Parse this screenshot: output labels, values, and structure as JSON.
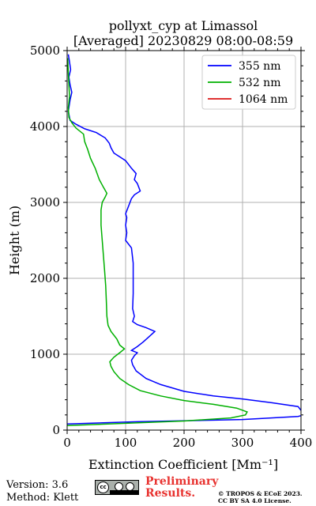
{
  "chart_data": {
    "type": "line",
    "title": "pollyxt_cyp at Limassol",
    "subtitle": "[Averaged] 20230829 08:00-08:59",
    "xlabel": "Extinction Coefficient [Mm⁻¹]",
    "ylabel": "Height (m)",
    "xlim": [
      0,
      400
    ],
    "ylim": [
      0,
      5000
    ],
    "x_ticks": [
      "0",
      "100",
      "200",
      "300",
      "400"
    ],
    "y_ticks": [
      "0",
      "1000",
      "2000",
      "3000",
      "4000",
      "5000"
    ],
    "x_tick_values": [
      0,
      100,
      200,
      300,
      400
    ],
    "y_tick_values": [
      0,
      1000,
      2000,
      3000,
      4000,
      5000
    ],
    "grid": true,
    "legend_position": "top-right",
    "series": [
      {
        "name": "355 nm",
        "color": "#0000ff",
        "points": [
          [
            0,
            80
          ],
          [
            120,
            110
          ],
          [
            300,
            140
          ],
          [
            395,
            180
          ],
          [
            405,
            200
          ],
          [
            400,
            260
          ],
          [
            395,
            310
          ],
          [
            350,
            360
          ],
          [
            300,
            410
          ],
          [
            250,
            450
          ],
          [
            200,
            510
          ],
          [
            160,
            600
          ],
          [
            135,
            680
          ],
          [
            118,
            780
          ],
          [
            112,
            860
          ],
          [
            110,
            920
          ],
          [
            115,
            980
          ],
          [
            120,
            1020
          ],
          [
            110,
            1050
          ],
          [
            120,
            1100
          ],
          [
            130,
            1160
          ],
          [
            140,
            1230
          ],
          [
            150,
            1300
          ],
          [
            135,
            1350
          ],
          [
            120,
            1390
          ],
          [
            112,
            1430
          ],
          [
            115,
            1500
          ],
          [
            112,
            1600
          ],
          [
            113,
            1800
          ],
          [
            113,
            2000
          ],
          [
            113,
            2200
          ],
          [
            110,
            2400
          ],
          [
            100,
            2500
          ],
          [
            102,
            2600
          ],
          [
            100,
            2700
          ],
          [
            102,
            2800
          ],
          [
            100,
            2850
          ],
          [
            105,
            2950
          ],
          [
            110,
            3050
          ],
          [
            115,
            3100
          ],
          [
            125,
            3150
          ],
          [
            120,
            3250
          ],
          [
            115,
            3300
          ],
          [
            118,
            3380
          ],
          [
            110,
            3450
          ],
          [
            100,
            3550
          ],
          [
            90,
            3600
          ],
          [
            80,
            3650
          ],
          [
            75,
            3720
          ],
          [
            72,
            3780
          ],
          [
            65,
            3850
          ],
          [
            50,
            3920
          ],
          [
            30,
            3970
          ],
          [
            15,
            4030
          ],
          [
            5,
            4080
          ],
          [
            2,
            4200
          ],
          [
            5,
            4350
          ],
          [
            8,
            4450
          ],
          [
            5,
            4550
          ],
          [
            3,
            4650
          ],
          [
            6,
            4750
          ],
          [
            4,
            4850
          ],
          [
            2,
            4950
          ]
        ]
      },
      {
        "name": "532 nm",
        "color": "#00b000",
        "points": [
          [
            0,
            60
          ],
          [
            100,
            90
          ],
          [
            200,
            120
          ],
          [
            280,
            160
          ],
          [
            305,
            200
          ],
          [
            308,
            240
          ],
          [
            290,
            290
          ],
          [
            250,
            340
          ],
          [
            200,
            390
          ],
          [
            160,
            450
          ],
          [
            125,
            520
          ],
          [
            105,
            600
          ],
          [
            90,
            680
          ],
          [
            80,
            770
          ],
          [
            75,
            840
          ],
          [
            73,
            900
          ],
          [
            80,
            960
          ],
          [
            90,
            1020
          ],
          [
            98,
            1070
          ],
          [
            90,
            1120
          ],
          [
            85,
            1200
          ],
          [
            75,
            1300
          ],
          [
            70,
            1380
          ],
          [
            68,
            1500
          ],
          [
            67,
            1700
          ],
          [
            66,
            1900
          ],
          [
            64,
            2100
          ],
          [
            62,
            2300
          ],
          [
            60,
            2500
          ],
          [
            58,
            2700
          ],
          [
            58,
            2900
          ],
          [
            60,
            3000
          ],
          [
            65,
            3070
          ],
          [
            68,
            3120
          ],
          [
            62,
            3200
          ],
          [
            55,
            3300
          ],
          [
            48,
            3450
          ],
          [
            40,
            3580
          ],
          [
            35,
            3700
          ],
          [
            30,
            3800
          ],
          [
            28,
            3900
          ],
          [
            15,
            3980
          ],
          [
            8,
            4050
          ],
          [
            3,
            4120
          ],
          [
            2,
            4250
          ],
          [
            4,
            4400
          ],
          [
            3,
            4550
          ],
          [
            2,
            4700
          ],
          [
            1,
            4900
          ]
        ]
      },
      {
        "name": "1064 nm",
        "color": "#dc1414",
        "points": []
      }
    ]
  },
  "footer": {
    "version": "Version: 3.6",
    "method": "Method: Klett",
    "license_badge": "cc-by-sa-badge",
    "preliminary_line1": "Preliminary",
    "preliminary_line2": "Results.",
    "copyright_line1": "© TROPOS & ECoE 2023.",
    "copyright_line2": "CC BY SA 4.0 License."
  }
}
